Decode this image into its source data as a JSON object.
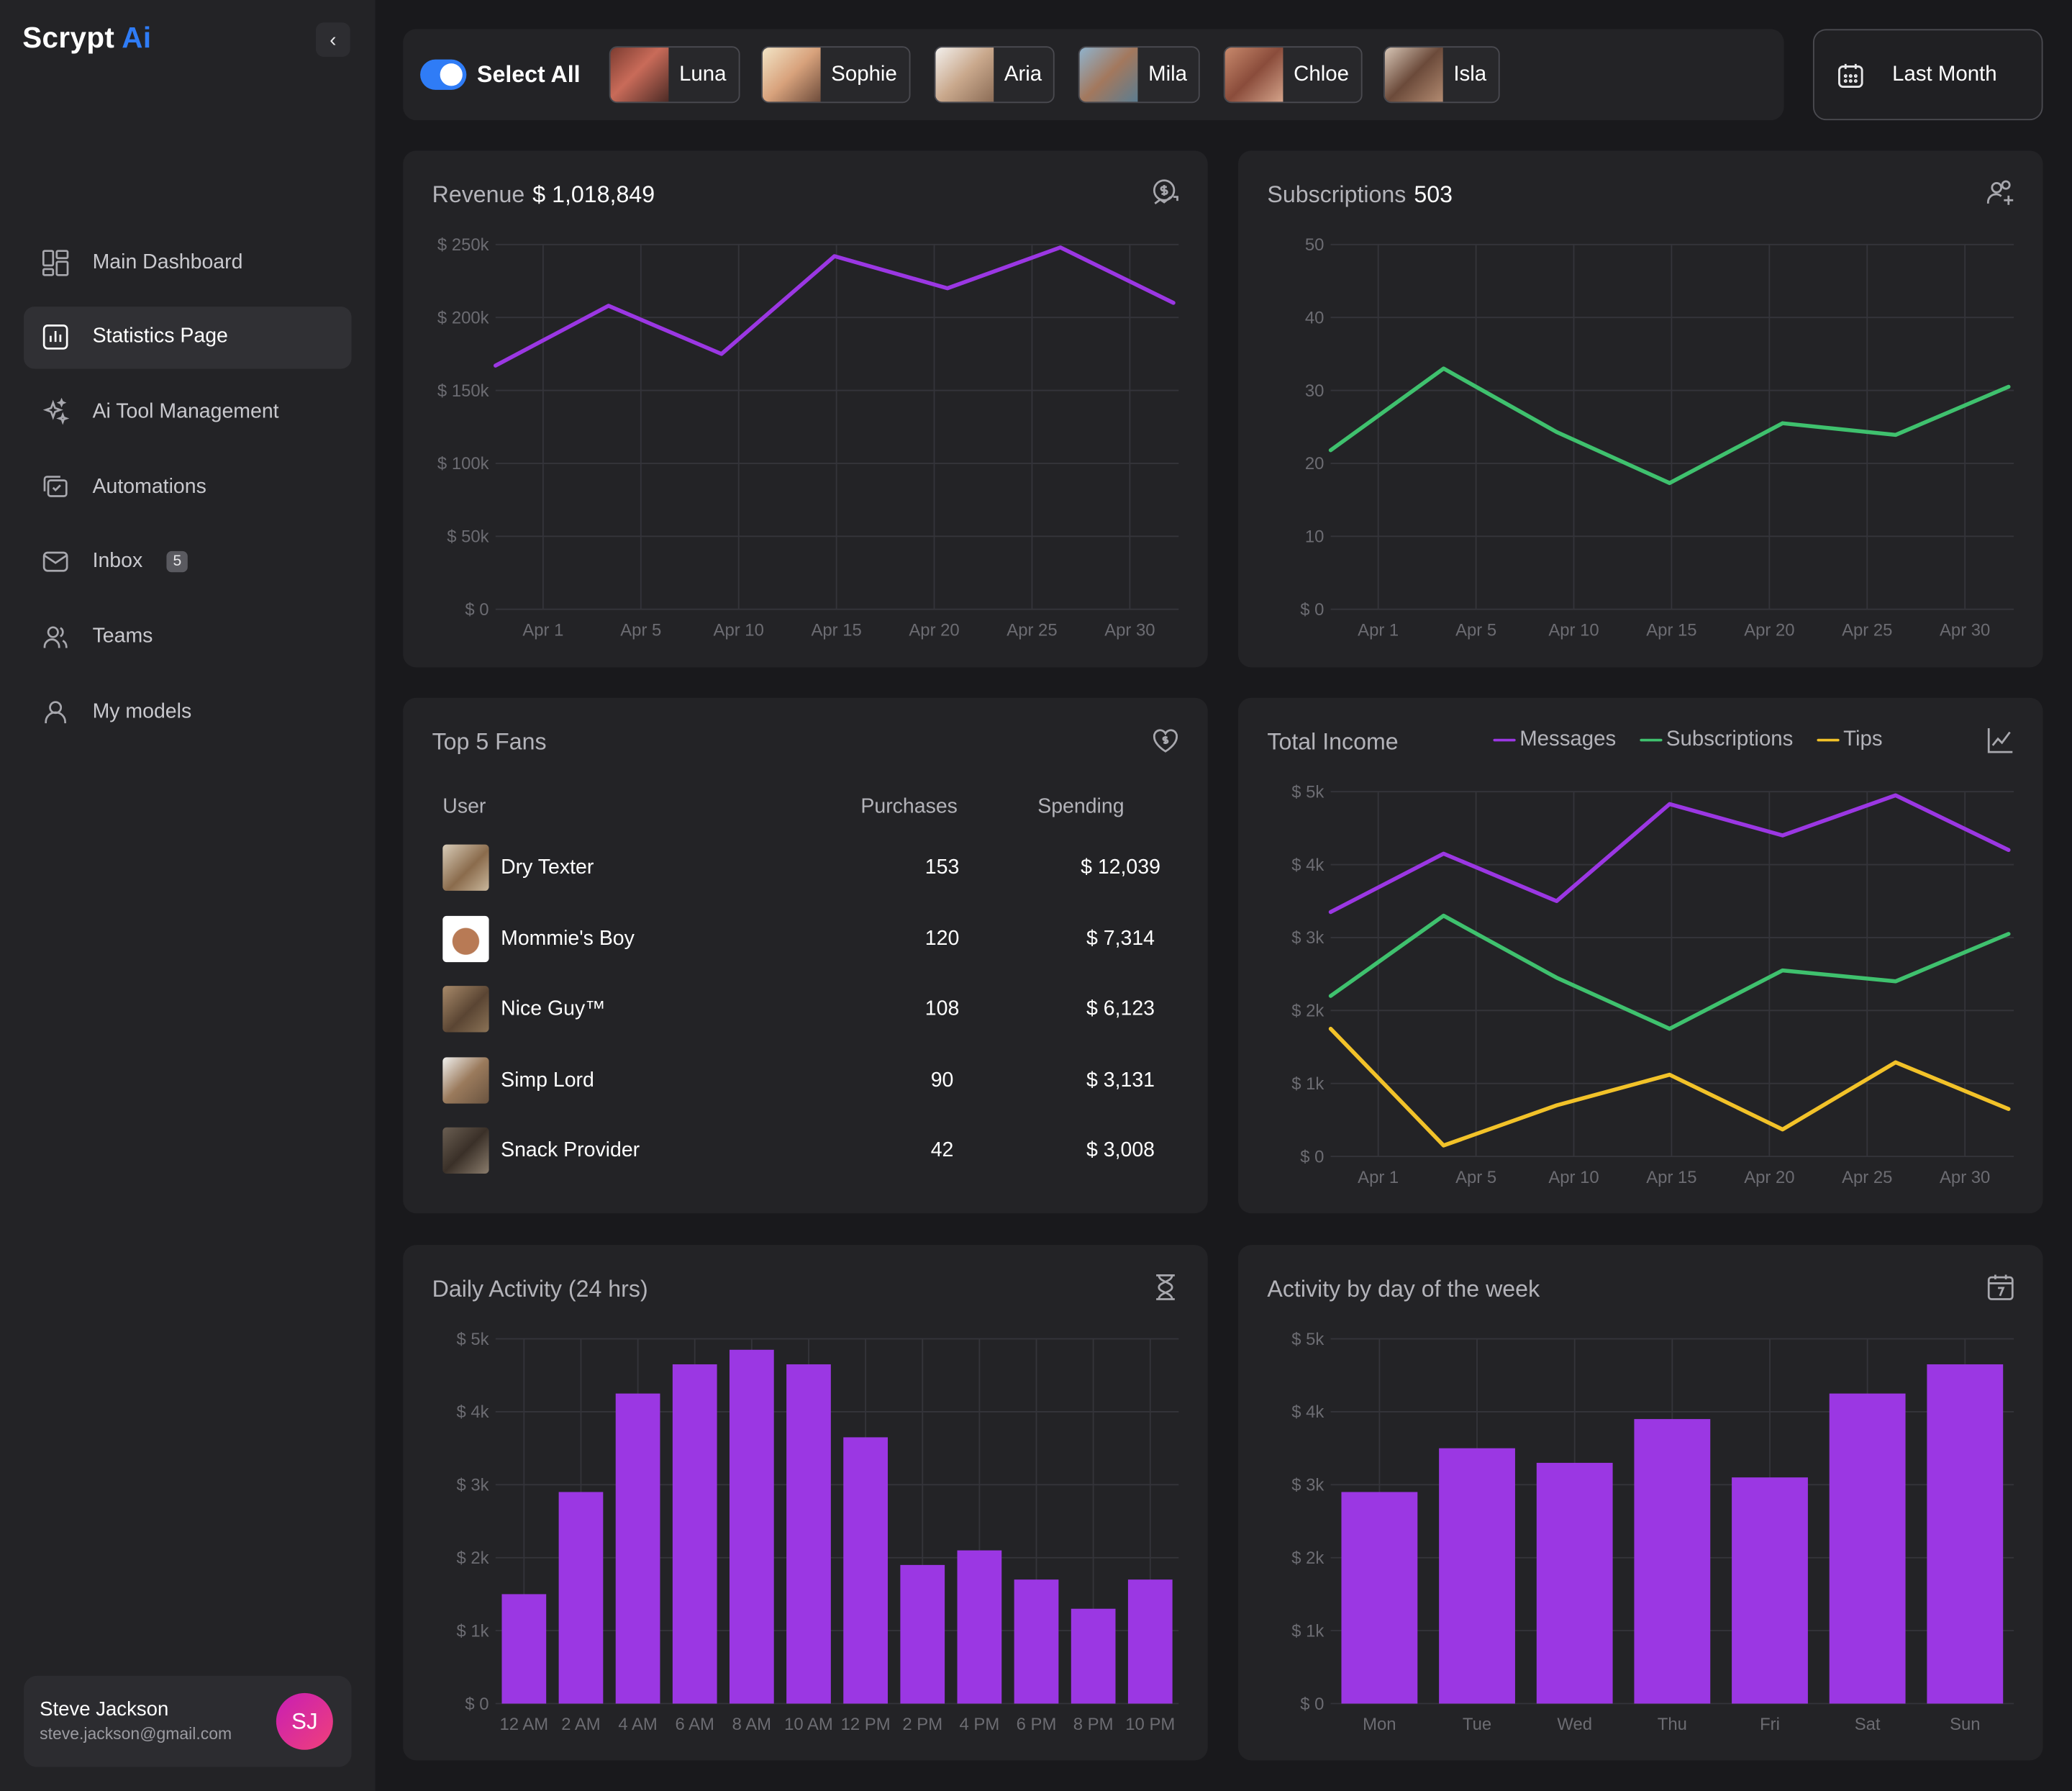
{
  "app": {
    "logo_text": "Scrypt",
    "logo_accent": "Ai",
    "accent_color": "#2f7cf6"
  },
  "sidebar": {
    "items": [
      {
        "label": "Main Dashboard",
        "icon": "dashboard-icon"
      },
      {
        "label": "Statistics Page",
        "icon": "bar-chart-icon",
        "active": true
      },
      {
        "label": "Ai Tool Management",
        "icon": "sparkles-icon"
      },
      {
        "label": "Automations",
        "icon": "automation-icon"
      },
      {
        "label": "Inbox",
        "icon": "mail-icon",
        "badge": "5"
      },
      {
        "label": "Teams",
        "icon": "team-icon"
      },
      {
        "label": "My models",
        "icon": "user-icon"
      }
    ],
    "user": {
      "name": "Steve Jackson",
      "email": "steve.jackson@gmail.com",
      "initials": "SJ"
    }
  },
  "topbar": {
    "select_all_label": "Select All",
    "select_all_on": true,
    "models": [
      "Luna",
      "Sophie",
      "Aria",
      "Mila",
      "Chloe",
      "Isla"
    ],
    "date_range": "Last Month"
  },
  "revenue": {
    "title": "Revenue",
    "value": "$ 1,018,849"
  },
  "subscriptions": {
    "title": "Subscriptions",
    "value": "503"
  },
  "top_fans": {
    "title": "Top 5 Fans",
    "headers": {
      "user": "User",
      "purchases": "Purchases",
      "spending": "Spending"
    },
    "rows": [
      {
        "user": "Dry Texter",
        "purchases": "153",
        "spending": "$ 12,039"
      },
      {
        "user": "Mommie's Boy",
        "purchases": "120",
        "spending": "$ 7,314"
      },
      {
        "user": "Nice Guy™",
        "purchases": "108",
        "spending": "$ 6,123"
      },
      {
        "user": "Simp Lord",
        "purchases": "90",
        "spending": "$ 3,131"
      },
      {
        "user": "Snack Provider",
        "purchases": "42",
        "spending": "$ 3,008"
      }
    ]
  },
  "total_income": {
    "title": "Total Income"
  },
  "daily_activity": {
    "title": "Daily Activity (24 hrs)"
  },
  "weekly_activity": {
    "title": "Activity by day of the week"
  },
  "chart_data": [
    {
      "id": "revenue",
      "type": "line",
      "x": [
        "Apr 1",
        "Apr 5",
        "Apr 10",
        "Apr 15",
        "Apr 20",
        "Apr 25",
        "Apr 30"
      ],
      "yticks": [
        "$ 0",
        "$ 50k",
        "$ 100k",
        "$ 150k",
        "$ 200k",
        "$ 250k"
      ],
      "ylim": [
        0,
        250000
      ],
      "series": [
        {
          "color": "#9b37e3",
          "points": [
            [
              0,
              167000
            ],
            [
              1,
              208000
            ],
            [
              2,
              175000
            ],
            [
              3,
              242000
            ],
            [
              4,
              220000
            ],
            [
              5,
              248000
            ],
            [
              6,
              210000
            ]
          ]
        }
      ],
      "grid": true
    },
    {
      "id": "subscriptions",
      "type": "line",
      "x": [
        "Apr 1",
        "Apr 5",
        "Apr 10",
        "Apr 15",
        "Apr 20",
        "Apr 25",
        "Apr 30"
      ],
      "yticks": [
        "$ 0",
        "10",
        "20",
        "30",
        "40",
        "50"
      ],
      "ylim": [
        0,
        50
      ],
      "series": [
        {
          "color": "#3fc16e",
          "points": [
            [
              0,
              21.8
            ],
            [
              1,
              33
            ],
            [
              2,
              24.3
            ],
            [
              3,
              17.3
            ],
            [
              4,
              25.5
            ],
            [
              5,
              23.9
            ],
            [
              6,
              30.5
            ]
          ]
        }
      ],
      "grid": true
    },
    {
      "id": "total_income",
      "type": "line",
      "x": [
        "Apr 1",
        "Apr 5",
        "Apr 10",
        "Apr 15",
        "Apr 20",
        "Apr 25",
        "Apr 30"
      ],
      "yticks": [
        "$ 0",
        "$ 1k",
        "$ 2k",
        "$ 3k",
        "$ 4k",
        "$ 5k"
      ],
      "ylim": [
        0,
        5000
      ],
      "series": [
        {
          "name": "Messages",
          "color": "#9b37e3",
          "points": [
            [
              0,
              3350
            ],
            [
              1,
              4150
            ],
            [
              2,
              3500
            ],
            [
              3,
              4830
            ],
            [
              4,
              4400
            ],
            [
              5,
              4950
            ],
            [
              6,
              4200
            ]
          ]
        },
        {
          "name": "Subscriptions",
          "color": "#3fc16e",
          "points": [
            [
              0,
              2200
            ],
            [
              1,
              3300
            ],
            [
              2,
              2450
            ],
            [
              3,
              1750
            ],
            [
              4,
              2550
            ],
            [
              5,
              2400
            ],
            [
              6,
              3050
            ]
          ]
        },
        {
          "name": "Tips",
          "color": "#f2c229",
          "points": [
            [
              0,
              1750
            ],
            [
              1,
              150
            ],
            [
              2,
              700
            ],
            [
              3,
              1120
            ],
            [
              4,
              370
            ],
            [
              5,
              1290
            ],
            [
              6,
              650
            ]
          ]
        }
      ],
      "grid": true,
      "legend": "top"
    },
    {
      "id": "daily_activity",
      "type": "bar",
      "categories": [
        "12 AM",
        "2 AM",
        "4 AM",
        "6 AM",
        "8 AM",
        "10 AM",
        "12 PM",
        "2 PM",
        "4 PM",
        "6 PM",
        "8 PM",
        "10 PM"
      ],
      "values": [
        1500,
        2900,
        4250,
        4650,
        4850,
        4650,
        3650,
        1900,
        2100,
        1700,
        1300,
        1700
      ],
      "yticks": [
        "$ 0",
        "$ 1k",
        "$ 2k",
        "$ 3k",
        "$ 4k",
        "$ 5k"
      ],
      "ylim": [
        0,
        5000
      ],
      "color": "#9b37e3",
      "grid": true
    },
    {
      "id": "weekly_activity",
      "type": "bar",
      "categories": [
        "Mon",
        "Tue",
        "Wed",
        "Thu",
        "Fri",
        "Sat",
        "Sun"
      ],
      "values": [
        2900,
        3500,
        3300,
        3900,
        3100,
        4250,
        4650
      ],
      "yticks": [
        "$ 0",
        "$ 1k",
        "$ 2k",
        "$ 3k",
        "$ 4k",
        "$ 5k"
      ],
      "ylim": [
        0,
        5000
      ],
      "color": "#9b37e3",
      "grid": true
    }
  ]
}
